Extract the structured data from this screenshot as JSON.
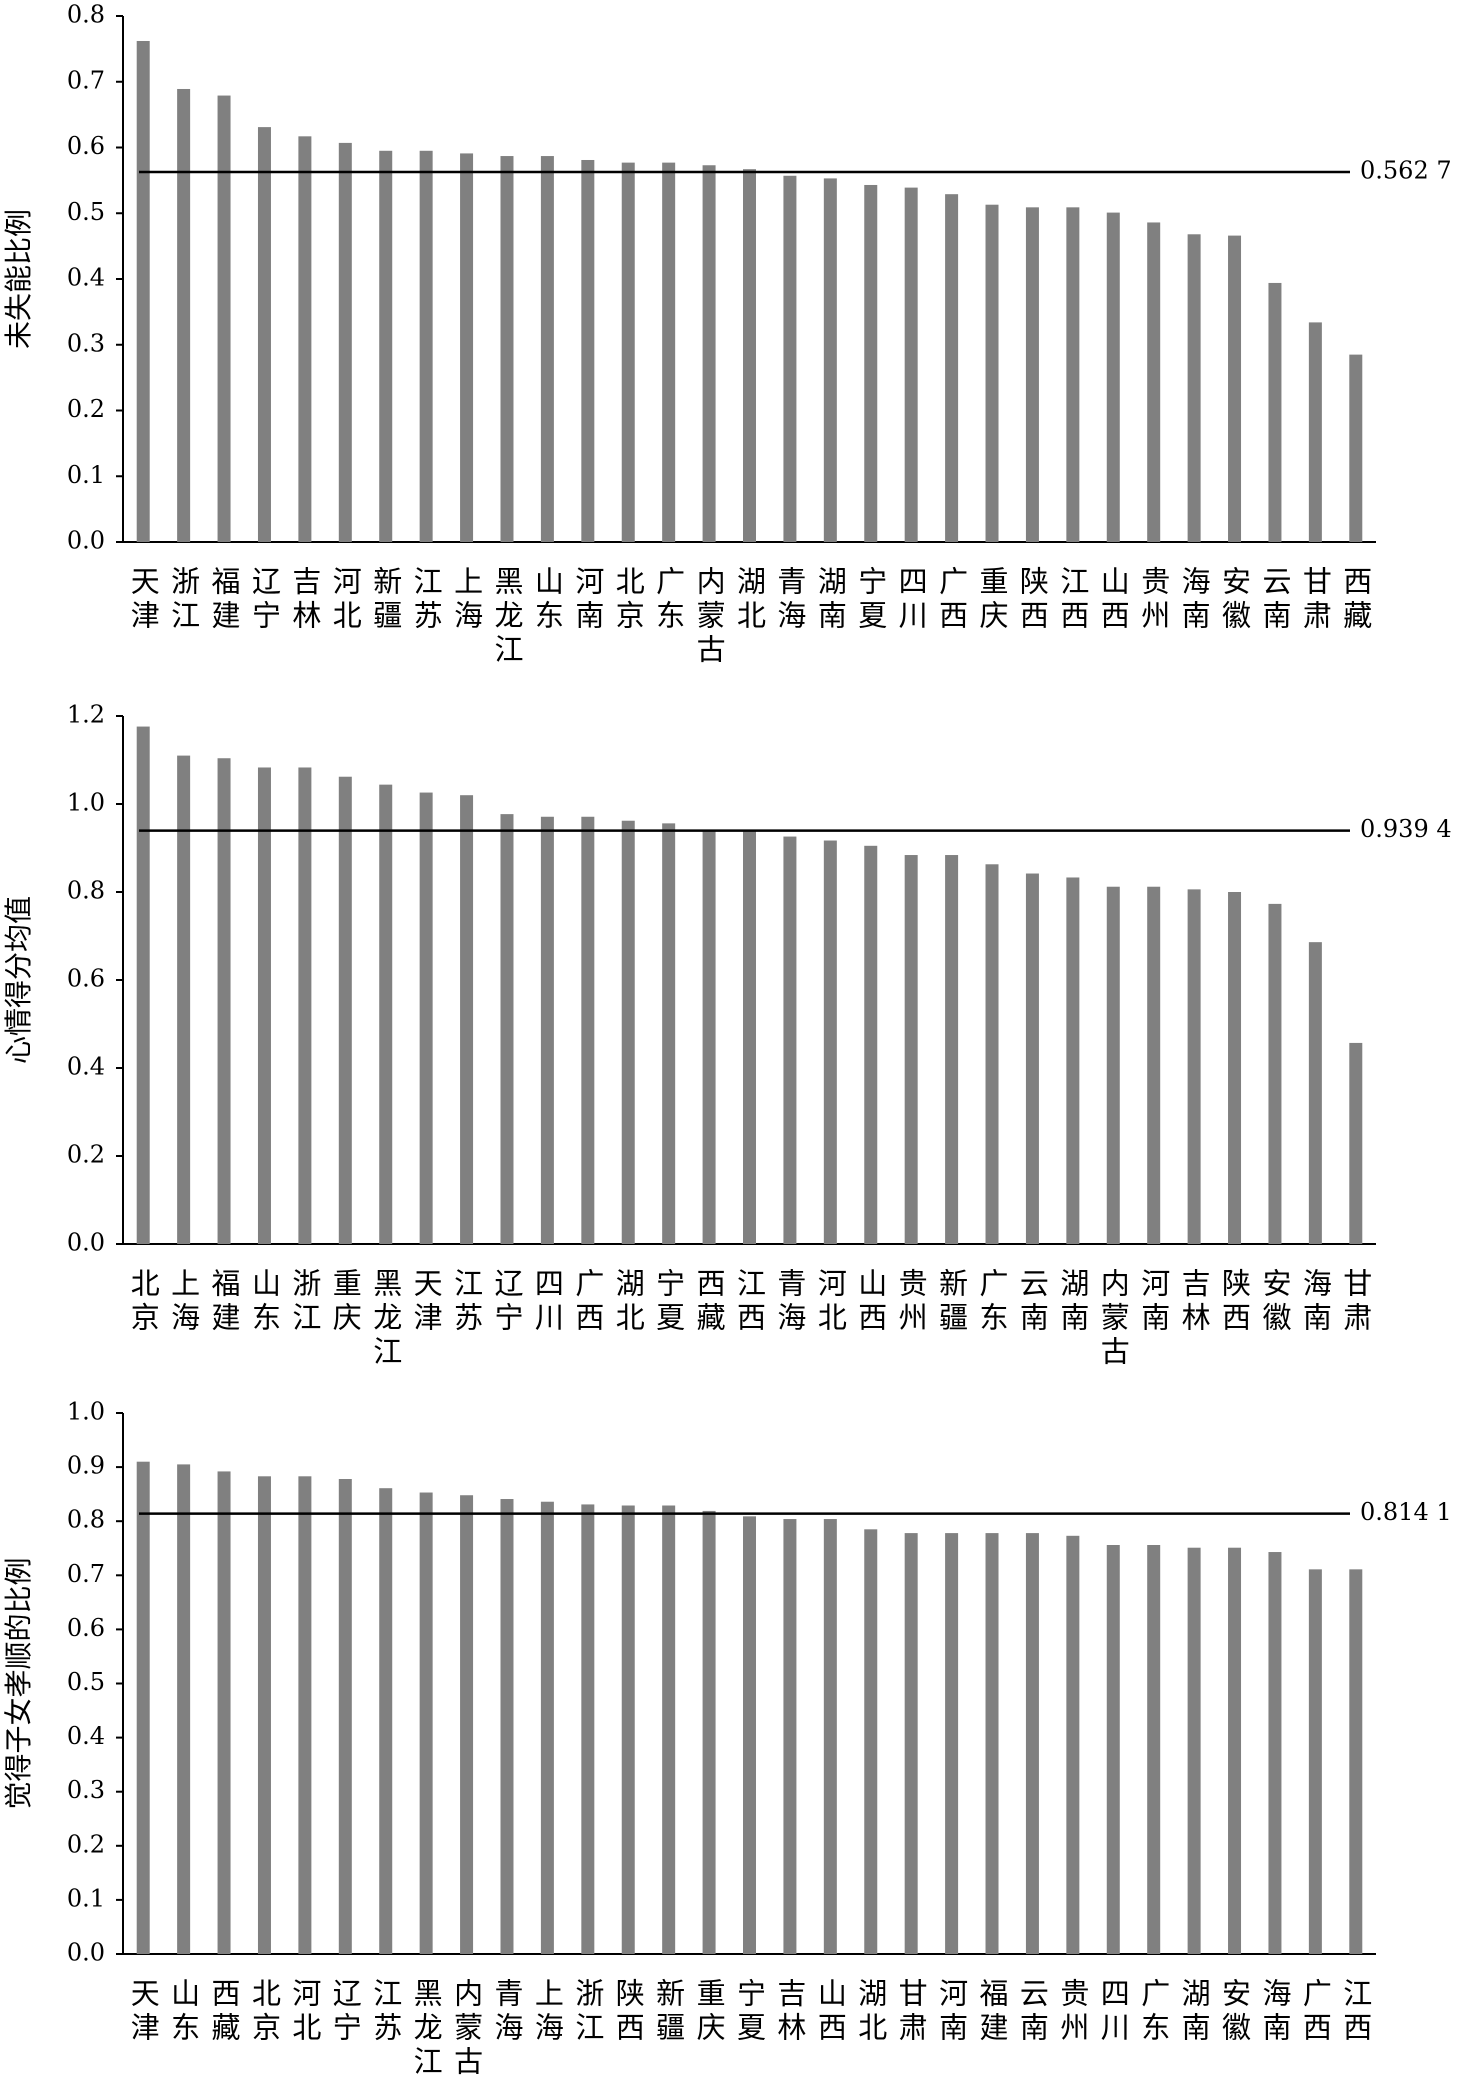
{
  "chart_data": [
    {
      "type": "bar",
      "y_label": "未失能比例",
      "color": "#808080",
      "ylim": [
        0,
        0.8
      ],
      "yticks": [
        {
          "value": 0,
          "label": "0.0"
        },
        0.1,
        0.2,
        0.3,
        0.4,
        0.5,
        0.6,
        0.7,
        0.8
      ],
      "reference": {
        "value": 0.5627,
        "label": "0.562 7"
      },
      "categories": [
        "天津",
        "浙江",
        "福建",
        "辽宁",
        "吉林",
        "河北",
        "新疆",
        "江苏",
        "上海",
        "黑龙江",
        "山东",
        "河南",
        "北京",
        "广东",
        "内蒙古",
        "湖北",
        "青海",
        "湖南",
        "宁夏",
        "四川",
        "广西",
        "重庆",
        "陕西",
        "江西",
        "山西",
        "贵州",
        "海南",
        "安徽",
        "云南",
        "甘肃",
        "西藏"
      ],
      "values": [
        0.762,
        0.689,
        0.679,
        0.631,
        0.617,
        0.607,
        0.595,
        0.595,
        0.591,
        0.587,
        0.587,
        0.581,
        0.577,
        0.577,
        0.573,
        0.567,
        0.557,
        0.553,
        0.543,
        0.539,
        0.529,
        0.513,
        0.509,
        0.509,
        0.501,
        0.486,
        0.468,
        0.466,
        0.394,
        0.334,
        0.285
      ]
    },
    {
      "type": "bar",
      "y_label": "心情得分均值",
      "color": "#808080",
      "ylim": [
        0,
        1.2
      ],
      "yticks": [
        {
          "value": 0,
          "label": "0.0"
        },
        0.2,
        0.4,
        0.6,
        0.8,
        {
          "value": 1,
          "label": "1.0"
        },
        1.2
      ],
      "reference": {
        "value": 0.9394,
        "label": "0.939 4"
      },
      "categories": [
        "北京",
        "上海",
        "福建",
        "山东",
        "浙江",
        "重庆",
        "黑龙江",
        "天津",
        "江苏",
        "辽宁",
        "四川",
        "广西",
        "湖北",
        "宁夏",
        "西藏",
        "江西",
        "青海",
        "河北",
        "山西",
        "贵州",
        "新疆",
        "广东",
        "云南",
        "湖南",
        "内蒙古",
        "河南",
        "吉林",
        "陕西",
        "安徽",
        "海南",
        "甘肃"
      ],
      "values": [
        1.176,
        1.11,
        1.104,
        1.083,
        1.083,
        1.062,
        1.044,
        1.026,
        1.02,
        0.977,
        0.971,
        0.971,
        0.962,
        0.956,
        0.938,
        0.938,
        0.926,
        0.917,
        0.905,
        0.884,
        0.884,
        0.863,
        0.842,
        0.833,
        0.812,
        0.812,
        0.806,
        0.8,
        0.773,
        0.686,
        0.457
      ]
    },
    {
      "type": "bar",
      "y_label": "觉得子女孝顺的比例",
      "color": "#808080",
      "ylim": [
        0,
        1
      ],
      "yticks": [
        {
          "value": 0,
          "label": "0.0"
        },
        0.1,
        0.2,
        0.3,
        0.4,
        0.5,
        0.6,
        0.7,
        0.8,
        0.9,
        {
          "value": 1,
          "label": "1.0"
        }
      ],
      "reference": {
        "value": 0.8141,
        "label": "0.814 1"
      },
      "categories": [
        "天津",
        "山东",
        "西藏",
        "北京",
        "河北",
        "辽宁",
        "江苏",
        "黑龙江",
        "内蒙古",
        "青海",
        "上海",
        "浙江",
        "陕西",
        "新疆",
        "重庆",
        "宁夏",
        "吉林",
        "山西",
        "湖北",
        "甘肃",
        "河南",
        "福建",
        "云南",
        "贵州",
        "四川",
        "广东",
        "湖南",
        "安徽",
        "海南",
        "广西",
        "江西"
      ],
      "values": [
        0.91,
        0.905,
        0.892,
        0.883,
        0.883,
        0.878,
        0.861,
        0.853,
        0.848,
        0.841,
        0.836,
        0.831,
        0.829,
        0.829,
        0.819,
        0.809,
        0.804,
        0.804,
        0.785,
        0.778,
        0.778,
        0.778,
        0.778,
        0.773,
        0.756,
        0.756,
        0.751,
        0.751,
        0.743,
        0.711,
        0.711
      ]
    }
  ]
}
